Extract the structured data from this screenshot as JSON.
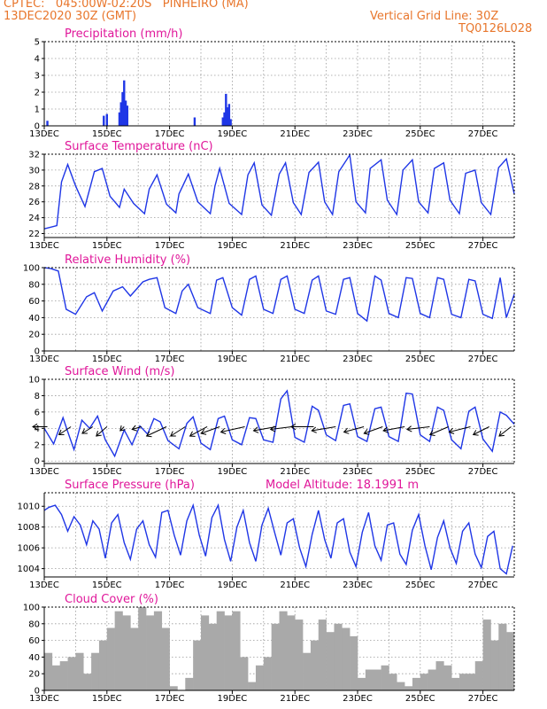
{
  "header": {
    "line1": "CPTEC:   045:00W-02:20S   PINHEIRO (MA)",
    "line2": "13DEC2020 30Z (GMT)",
    "right1": "Vertical Grid Line: 30Z",
    "right2": "TQ0126L028"
  },
  "colors": {
    "line": "#1f36e6",
    "bar": "#1f36e6",
    "cloud": "#a9a9a9",
    "title": "#e0179a",
    "header": "#e8762c"
  },
  "chart_data": [
    {
      "type": "bar",
      "title": "Precipitation (mm/h)",
      "ylim": [
        0,
        5
      ],
      "yticks": [
        0,
        1,
        2,
        3,
        4,
        5
      ],
      "xlim": [
        13,
        28
      ],
      "xtick_labels": [
        "13DEC",
        "15DEC",
        "17DEC",
        "19DEC",
        "21DEC",
        "23DEC",
        "25DEC",
        "27DEC"
      ],
      "x": [
        13.1,
        14.9,
        15.0,
        15.4,
        15.45,
        15.5,
        15.55,
        15.6,
        15.65,
        17.8,
        18.7,
        18.75,
        18.8,
        18.85,
        18.9,
        18.95
      ],
      "values": [
        0.3,
        0.6,
        0.7,
        0.8,
        1.4,
        2.0,
        2.7,
        1.5,
        1.2,
        0.5,
        0.5,
        0.8,
        1.9,
        1.1,
        1.3,
        0.4
      ]
    },
    {
      "type": "line",
      "title": "Surface Temperature (nC)",
      "ylim": [
        21.5,
        32
      ],
      "yticks": [
        22,
        24,
        26,
        28,
        30,
        32
      ],
      "xlim": [
        13,
        28
      ],
      "xtick_labels": [
        "13DEC",
        "15DEC",
        "17DEC",
        "19DEC",
        "21DEC",
        "23DEC",
        "25DEC",
        "27DEC"
      ],
      "series": [
        {
          "x": [
            13.0,
            13.4,
            13.55,
            13.75,
            14.0,
            14.3,
            14.6,
            14.85,
            15.1,
            15.4,
            15.55,
            15.85,
            16.2,
            16.35,
            16.6,
            16.9,
            17.2,
            17.3,
            17.6,
            17.9,
            18.3,
            18.45,
            18.6,
            18.9,
            19.3,
            19.5,
            19.7,
            19.95,
            20.25,
            20.5,
            20.7,
            20.95,
            21.2,
            21.45,
            21.75,
            21.95,
            22.2,
            22.4,
            22.75,
            22.95,
            23.25,
            23.4,
            23.75,
            23.95,
            24.25,
            24.45,
            24.75,
            24.95,
            25.25,
            25.45,
            25.75,
            25.95,
            26.25,
            26.45,
            26.75,
            26.95,
            27.25,
            27.5,
            27.75,
            28.0
          ],
          "values": [
            22.6,
            23.0,
            28.5,
            30.7,
            28.0,
            25.4,
            29.8,
            30.2,
            26.7,
            25.3,
            27.6,
            25.8,
            24.5,
            27.6,
            29.4,
            25.7,
            24.6,
            27.0,
            29.5,
            26.0,
            24.5,
            28.0,
            30.2,
            25.8,
            24.4,
            29.4,
            30.9,
            25.6,
            24.3,
            29.5,
            30.9,
            25.9,
            24.4,
            29.7,
            31.0,
            26.0,
            24.4,
            29.8,
            31.9,
            26.0,
            24.6,
            30.2,
            31.3,
            26.2,
            24.4,
            30.0,
            31.3,
            26.0,
            24.6,
            30.2,
            30.9,
            26.2,
            24.5,
            29.6,
            30.0,
            25.9,
            24.4,
            30.3,
            31.4,
            27.0
          ]
        }
      ]
    },
    {
      "type": "line",
      "title": "Relative Humidity (%)",
      "ylim": [
        0,
        100
      ],
      "yticks": [
        0,
        20,
        40,
        60,
        80,
        100
      ],
      "xlim": [
        13,
        28
      ],
      "xtick_labels": [
        "13DEC",
        "15DEC",
        "17DEC",
        "19DEC",
        "21DEC",
        "23DEC",
        "25DEC",
        "27DEC"
      ],
      "series": [
        {
          "x": [
            13.0,
            13.2,
            13.45,
            13.7,
            14.0,
            14.35,
            14.6,
            14.85,
            15.2,
            15.5,
            15.75,
            16.15,
            16.35,
            16.6,
            16.85,
            17.2,
            17.4,
            17.6,
            17.9,
            18.3,
            18.5,
            18.7,
            19.0,
            19.3,
            19.55,
            19.75,
            20.0,
            20.3,
            20.55,
            20.75,
            21.0,
            21.3,
            21.55,
            21.75,
            22.0,
            22.3,
            22.55,
            22.75,
            23.0,
            23.3,
            23.55,
            23.75,
            24.0,
            24.3,
            24.55,
            24.75,
            25.0,
            25.3,
            25.55,
            25.75,
            26.0,
            26.3,
            26.55,
            26.75,
            27.0,
            27.3,
            27.55,
            27.75,
            28.0
          ],
          "values": [
            100,
            99,
            96,
            50,
            44,
            65,
            70,
            48,
            72,
            77,
            66,
            83,
            86,
            88,
            52,
            45,
            72,
            80,
            52,
            45,
            85,
            88,
            52,
            43,
            86,
            90,
            50,
            45,
            86,
            90,
            50,
            45,
            85,
            90,
            48,
            44,
            86,
            88,
            45,
            36,
            90,
            85,
            45,
            40,
            88,
            87,
            45,
            40,
            88,
            86,
            44,
            40,
            86,
            84,
            44,
            39,
            88,
            40,
            68
          ]
        }
      ]
    },
    {
      "type": "line",
      "title": "Surface Wind (m/s)",
      "ylim": [
        -0.3,
        10
      ],
      "yticks": [
        0,
        2,
        4,
        6,
        8,
        10
      ],
      "xlim": [
        13,
        28
      ],
      "xtick_labels": [
        "13DEC",
        "15DEC",
        "17DEC",
        "19DEC",
        "21DEC",
        "23DEC",
        "25DEC",
        "27DEC"
      ],
      "series": [
        {
          "x": [
            13.0,
            13.3,
            13.6,
            13.75,
            13.95,
            14.2,
            14.45,
            14.7,
            14.95,
            15.25,
            15.55,
            15.8,
            16.05,
            16.3,
            16.5,
            16.7,
            16.95,
            17.3,
            17.55,
            17.75,
            18.0,
            18.3,
            18.55,
            18.75,
            19.0,
            19.3,
            19.55,
            19.75,
            20.0,
            20.3,
            20.55,
            20.75,
            21.0,
            21.3,
            21.55,
            21.75,
            22.0,
            22.3,
            22.55,
            22.75,
            23.0,
            23.3,
            23.55,
            23.75,
            24.0,
            24.3,
            24.55,
            24.75,
            25.0,
            25.3,
            25.55,
            25.75,
            26.0,
            26.3,
            26.55,
            26.75,
            27.0,
            27.3,
            27.55,
            27.75,
            28.0
          ],
          "values": [
            4.0,
            2.1,
            5.3,
            3.6,
            1.4,
            5.0,
            4.0,
            5.5,
            2.6,
            0.6,
            3.8,
            2.0,
            4.3,
            3.3,
            5.2,
            4.8,
            2.5,
            1.5,
            4.6,
            5.4,
            2.2,
            1.4,
            5.2,
            5.5,
            2.6,
            2.0,
            5.3,
            5.2,
            2.6,
            2.3,
            7.6,
            8.6,
            2.9,
            2.3,
            6.7,
            6.2,
            3.2,
            2.5,
            6.8,
            7.0,
            3.0,
            2.4,
            6.4,
            6.6,
            3.0,
            2.4,
            8.3,
            8.2,
            3.2,
            2.4,
            6.6,
            6.2,
            2.6,
            1.5,
            6.1,
            6.6,
            2.7,
            1.2,
            6.0,
            5.6,
            4.5
          ]
        }
      ],
      "wind_vectors": [
        {
          "x": 13.1,
          "u": -0.55,
          "v": 0.0
        },
        {
          "x": 13.85,
          "u": -0.45,
          "v": -0.3
        },
        {
          "x": 14.55,
          "u": -0.4,
          "v": -0.25
        },
        {
          "x": 15.0,
          "u": -0.4,
          "v": -0.35
        },
        {
          "x": 15.55,
          "u": -0.15,
          "v": -0.15
        },
        {
          "x": 16.1,
          "u": -0.35,
          "v": -0.1
        },
        {
          "x": 16.9,
          "u": -0.75,
          "v": -0.35
        },
        {
          "x": 17.5,
          "u": -0.55,
          "v": -0.35
        },
        {
          "x": 18.2,
          "u": -0.65,
          "v": -0.35
        },
        {
          "x": 18.6,
          "u": -0.7,
          "v": -0.25
        },
        {
          "x": 19.4,
          "u": -0.9,
          "v": -0.2
        },
        {
          "x": 20.4,
          "u": -0.85,
          "v": -0.15
        },
        {
          "x": 20.9,
          "u": -0.8,
          "v": -0.1
        },
        {
          "x": 21.6,
          "u": -0.85,
          "v": 0.0
        },
        {
          "x": 22.3,
          "u": -0.9,
          "v": -0.15
        },
        {
          "x": 23.2,
          "u": -0.75,
          "v": -0.2
        },
        {
          "x": 23.8,
          "u": -0.7,
          "v": -0.25
        },
        {
          "x": 24.5,
          "u": -0.8,
          "v": -0.15
        },
        {
          "x": 25.3,
          "u": -0.85,
          "v": -0.1
        },
        {
          "x": 25.9,
          "u": -0.7,
          "v": -0.3
        },
        {
          "x": 26.6,
          "u": -0.8,
          "v": -0.2
        },
        {
          "x": 27.2,
          "u": -0.6,
          "v": -0.3
        },
        {
          "x": 27.9,
          "u": -0.45,
          "v": -0.35
        }
      ]
    },
    {
      "type": "line",
      "title": "Surface Pressure (hPa)",
      "subtitle": "Model Altitude: 18.1991 m",
      "ylim": [
        1003.2,
        1011.3
      ],
      "yticks": [
        1004,
        1006,
        1008,
        1010
      ],
      "xlim": [
        13,
        28
      ],
      "xtick_labels": [
        "13DEC",
        "15DEC",
        "17DEC",
        "19DEC",
        "21DEC",
        "23DEC",
        "25DEC",
        "27DEC"
      ],
      "series": [
        {
          "x": [
            13.0,
            13.15,
            13.35,
            13.55,
            13.75,
            13.95,
            14.15,
            14.35,
            14.55,
            14.75,
            14.95,
            15.15,
            15.35,
            15.55,
            15.75,
            15.95,
            16.15,
            16.35,
            16.55,
            16.75,
            16.95,
            17.15,
            17.35,
            17.55,
            17.75,
            17.95,
            18.15,
            18.35,
            18.55,
            18.75,
            18.95,
            19.15,
            19.35,
            19.55,
            19.75,
            19.95,
            20.15,
            20.35,
            20.55,
            20.75,
            20.95,
            21.15,
            21.35,
            21.55,
            21.75,
            21.95,
            22.15,
            22.35,
            22.55,
            22.75,
            22.95,
            23.15,
            23.35,
            23.55,
            23.75,
            23.95,
            24.15,
            24.35,
            24.55,
            24.75,
            24.95,
            25.15,
            25.35,
            25.55,
            25.75,
            25.95,
            26.15,
            26.35,
            26.55,
            26.75,
            26.95,
            27.15,
            27.35,
            27.55,
            27.75,
            27.95
          ],
          "values": [
            1009.6,
            1009.9,
            1010.1,
            1009.2,
            1007.6,
            1009.0,
            1008.2,
            1006.3,
            1008.6,
            1007.8,
            1005.0,
            1008.4,
            1009.2,
            1006.5,
            1004.9,
            1007.8,
            1008.6,
            1006.3,
            1005.1,
            1009.4,
            1009.6,
            1007.2,
            1005.3,
            1008.6,
            1010.1,
            1007.2,
            1005.2,
            1008.9,
            1010.1,
            1006.8,
            1004.7,
            1008.0,
            1009.6,
            1006.5,
            1004.7,
            1008.2,
            1009.8,
            1007.5,
            1005.3,
            1008.4,
            1008.8,
            1006.0,
            1004.2,
            1007.3,
            1009.6,
            1006.8,
            1005.0,
            1008.4,
            1008.8,
            1005.6,
            1004.2,
            1007.5,
            1009.4,
            1006.2,
            1004.8,
            1008.2,
            1008.4,
            1005.4,
            1004.4,
            1007.7,
            1009.2,
            1006.2,
            1003.9,
            1007.0,
            1008.6,
            1006.0,
            1004.5,
            1007.6,
            1008.4,
            1005.4,
            1004.1,
            1007.1,
            1007.6,
            1004.0,
            1003.5,
            1006.2
          ]
        }
      ]
    },
    {
      "type": "bar",
      "title": "Cloud Cover (%)",
      "ylim": [
        0,
        100
      ],
      "yticks": [
        0,
        20,
        40,
        60,
        80,
        100
      ],
      "xlim": [
        13,
        28
      ],
      "xtick_labels": [
        "13DEC",
        "15DEC",
        "17DEC",
        "19DEC",
        "21DEC",
        "23DEC",
        "25DEC",
        "27DEC"
      ],
      "x": [
        13.0,
        13.25,
        13.5,
        13.75,
        14.0,
        14.25,
        14.5,
        14.75,
        15.0,
        15.25,
        15.5,
        15.75,
        16.0,
        16.25,
        16.5,
        16.75,
        17.0,
        17.25,
        17.5,
        17.75,
        18.0,
        18.25,
        18.5,
        18.75,
        19.0,
        19.25,
        19.5,
        19.75,
        20.0,
        20.25,
        20.5,
        20.75,
        21.0,
        21.25,
        21.5,
        21.75,
        22.0,
        22.25,
        22.5,
        22.75,
        23.0,
        23.25,
        23.5,
        23.75,
        24.0,
        24.25,
        24.5,
        24.75,
        25.0,
        25.25,
        25.5,
        25.75,
        26.0,
        26.25,
        26.5,
        26.75,
        27.0,
        27.25,
        27.5,
        27.75
      ],
      "values": [
        45,
        30,
        35,
        40,
        45,
        20,
        45,
        60,
        75,
        95,
        90,
        75,
        100,
        90,
        95,
        75,
        5,
        0,
        15,
        60,
        90,
        80,
        95,
        90,
        95,
        40,
        10,
        30,
        40,
        80,
        95,
        90,
        85,
        45,
        60,
        85,
        70,
        80,
        75,
        65,
        15,
        25,
        25,
        30,
        20,
        10,
        5,
        15,
        20,
        25,
        35,
        30,
        15,
        20,
        20,
        35,
        85,
        60,
        80,
        70
      ]
    }
  ]
}
